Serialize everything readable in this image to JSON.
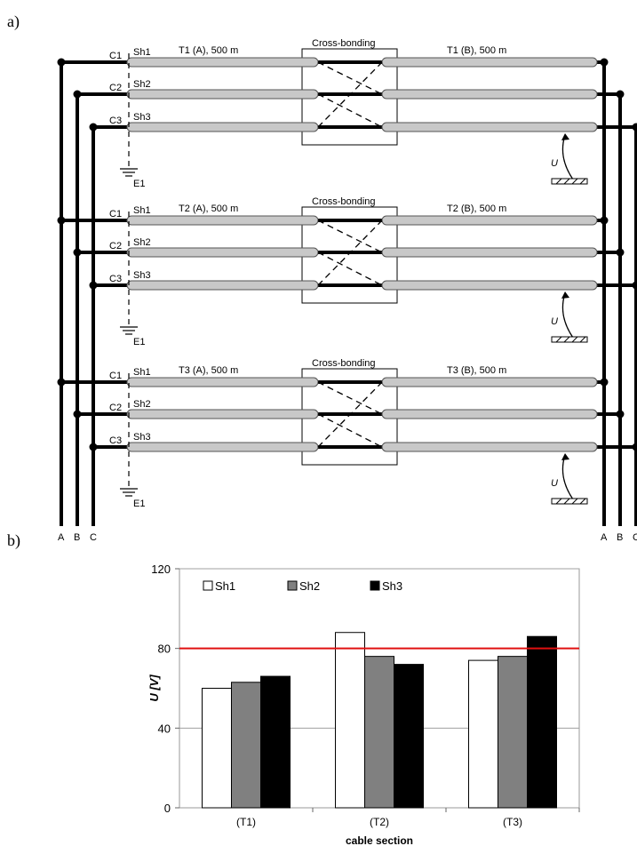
{
  "panel_a": {
    "label": "a)",
    "sections": [
      {
        "rows": [
          "C1",
          "C2",
          "C3"
        ],
        "sheaths": [
          "Sh1",
          "Sh2",
          "Sh3"
        ],
        "left_title": "T1 (A), 500 m",
        "right_title": "T1 (B), 500 m",
        "box_title": "Cross-bonding",
        "earth": "E1",
        "voltage": "U"
      },
      {
        "rows": [
          "C1",
          "C2",
          "C3"
        ],
        "sheaths": [
          "Sh1",
          "Sh2",
          "Sh3"
        ],
        "left_title": "T2 (A), 500 m",
        "right_title": "T2 (B), 500 m",
        "box_title": "Cross-bonding",
        "earth": "E1",
        "voltage": "U"
      },
      {
        "rows": [
          "C1",
          "C2",
          "C3"
        ],
        "sheaths": [
          "Sh1",
          "Sh2",
          "Sh3"
        ],
        "left_title": "T3 (A), 500 m",
        "right_title": "T3 (B), 500 m",
        "box_title": "Cross-bonding",
        "earth": "E1",
        "voltage": "U"
      }
    ],
    "phases_left": [
      "A",
      "B",
      "C"
    ],
    "phases_right": [
      "A",
      "B",
      "C"
    ]
  },
  "panel_b": {
    "label": "b)"
  },
  "chart_data": {
    "type": "bar",
    "categories": [
      "(T1)",
      "(T2)",
      "(T3)"
    ],
    "series": [
      {
        "name": "Sh1",
        "values": [
          60,
          88,
          74
        ],
        "color": "#ffffff"
      },
      {
        "name": "Sh2",
        "values": [
          63,
          76,
          76
        ],
        "color": "#808080"
      },
      {
        "name": "Sh3",
        "values": [
          66,
          72,
          86
        ],
        "color": "#000000"
      }
    ],
    "xlabel": "cable section",
    "ylabel": "U [V]",
    "ylim": [
      0,
      120
    ],
    "yticks": [
      "0",
      "40",
      "80",
      "120"
    ],
    "reference_line": {
      "value": 80,
      "color": "#e01010"
    },
    "grid": true,
    "legend": "top-left"
  }
}
